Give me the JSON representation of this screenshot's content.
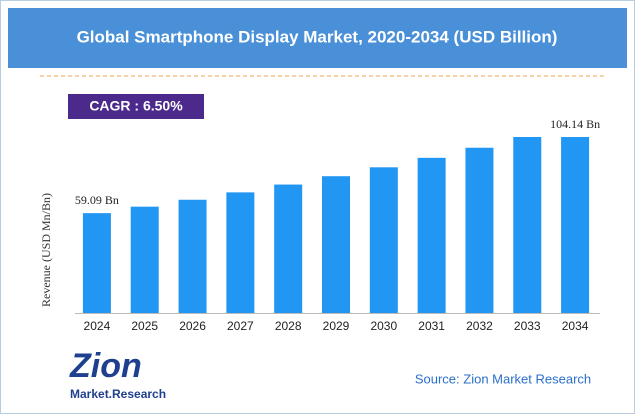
{
  "chart_data": {
    "type": "bar",
    "title": "Global Smartphone Display Market, 2020-2034 (USD Billion)",
    "cagr": "CAGR :  6.50%",
    "y_label": "Revenue (USD Mn/Bn)",
    "categories": [
      "2024",
      "2025",
      "2026",
      "2027",
      "2028",
      "2029",
      "2030",
      "2031",
      "2032",
      "2033",
      "2034"
    ],
    "values": [
      59.09,
      62.93,
      67.02,
      71.38,
      76.02,
      80.96,
      86.22,
      91.83,
      97.8,
      104.16,
      104.14
    ],
    "value_labels": [
      "59.09 Bn",
      null,
      null,
      null,
      null,
      null,
      null,
      null,
      null,
      null,
      "104.14 Bn"
    ],
    "color": "#2196f3",
    "source": "Source: Zion Market Research",
    "logo": {
      "name": "Zion",
      "tagline": "Market.Research"
    }
  }
}
